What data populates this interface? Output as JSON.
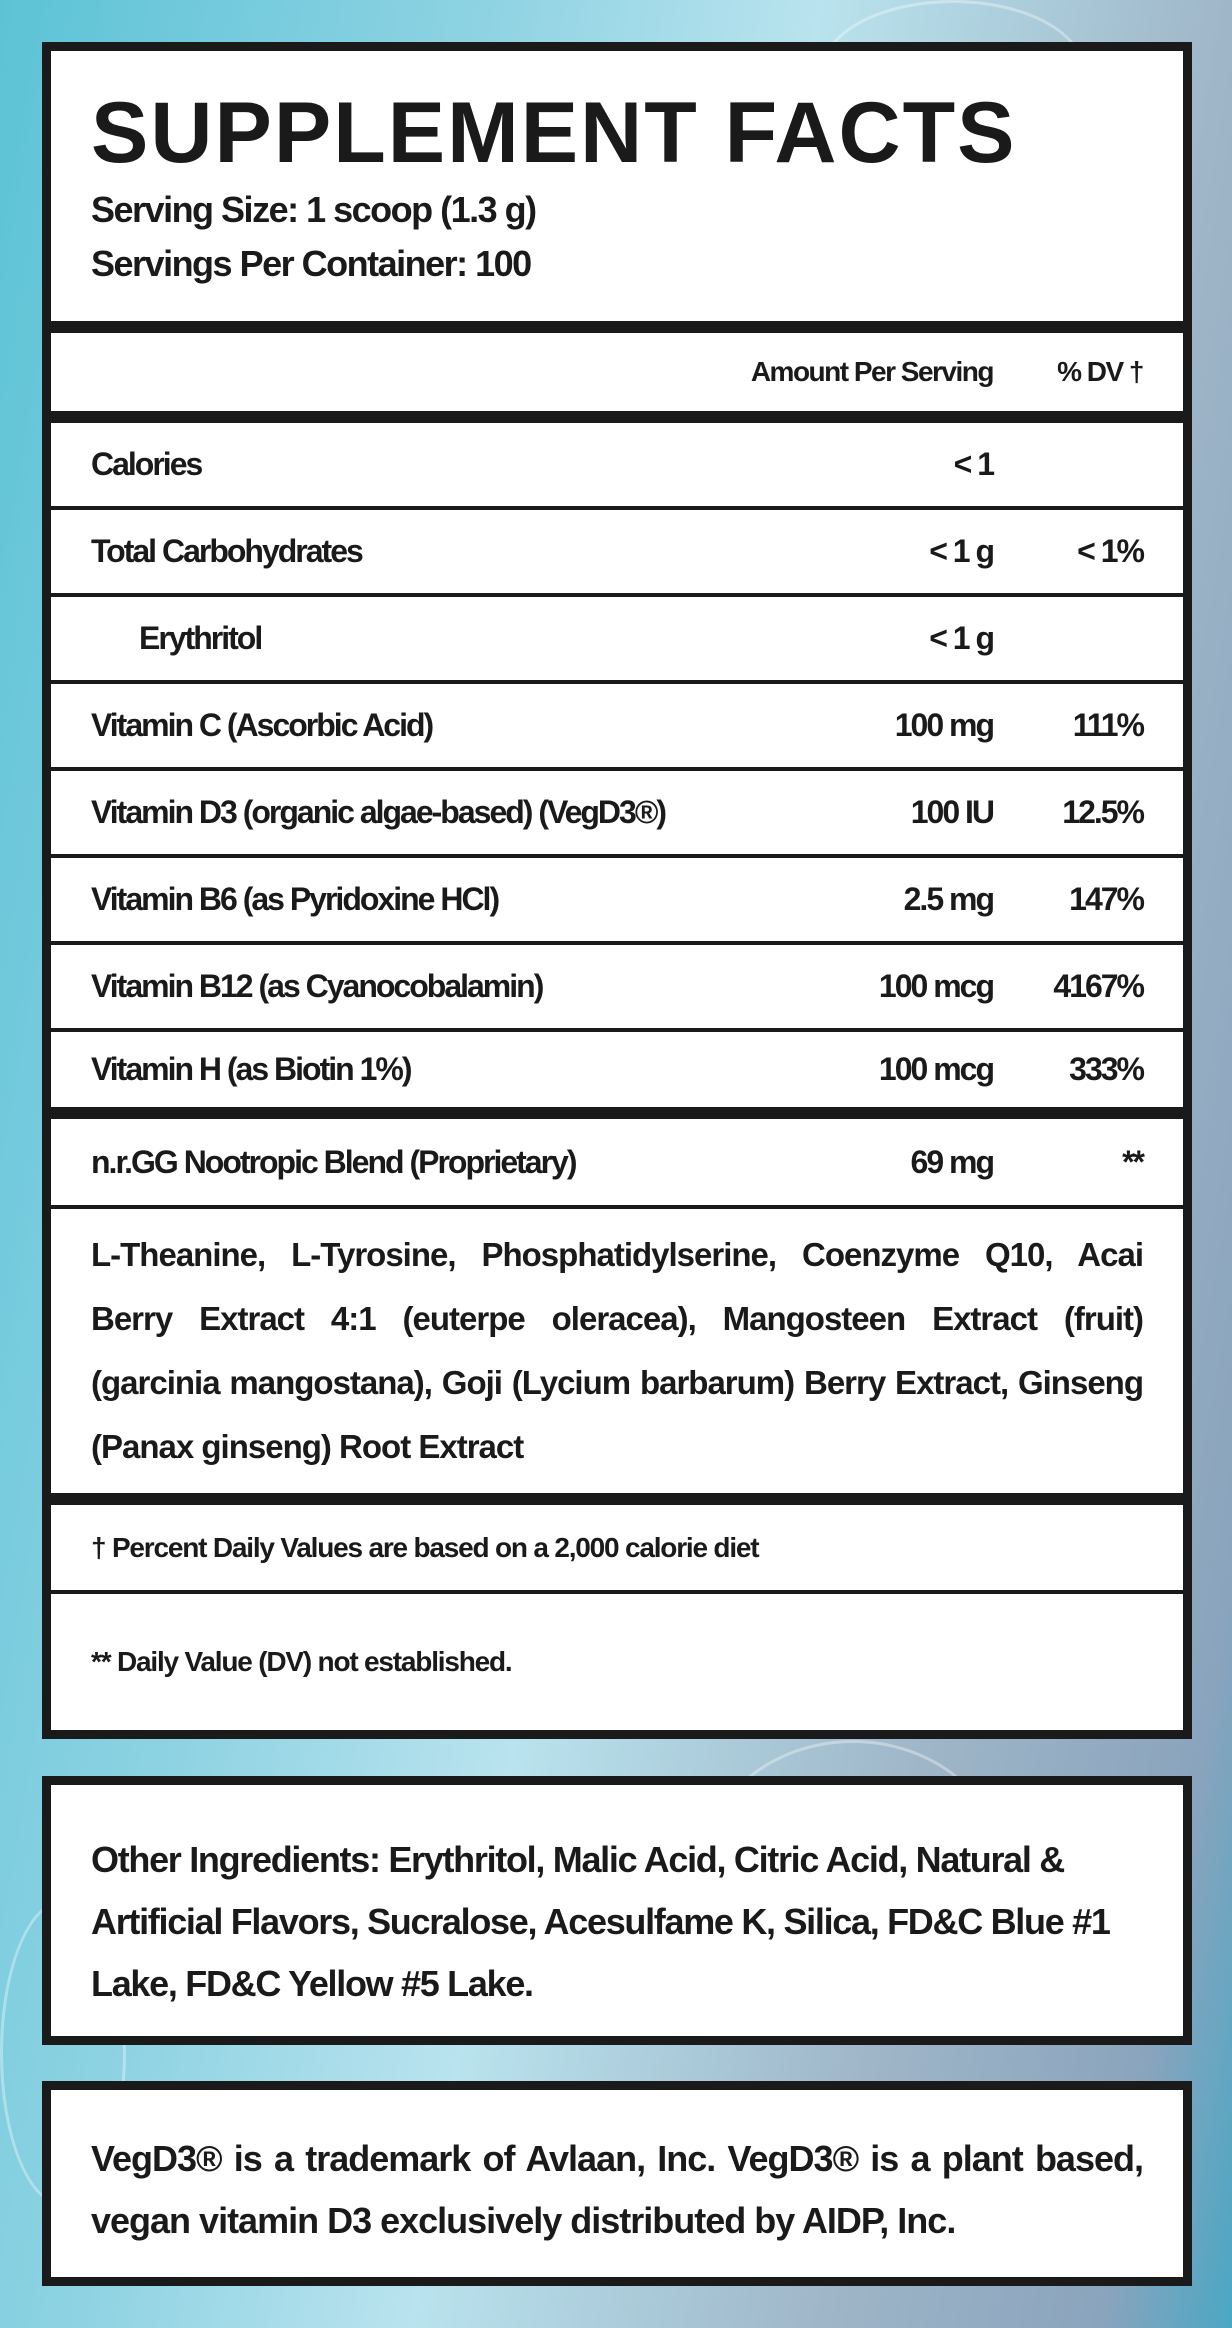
{
  "title": "SUPPLEMENT FACTS",
  "serving_size": "Serving Size: 1 scoop (1.3 g)",
  "servings_per_container": "Servings Per Container: 100",
  "columns": {
    "amount": "Amount Per Serving",
    "dv": "% DV †"
  },
  "rows": [
    {
      "name": "Calories",
      "amount": "< 1",
      "dv": ""
    },
    {
      "name": "Total Carbohydrates",
      "amount": "< 1 g",
      "dv": "< 1%"
    },
    {
      "name": "Erythritol",
      "amount": "< 1 g",
      "dv": ""
    },
    {
      "name": "Vitamin C (Ascorbic Acid)",
      "amount": "100 mg",
      "dv": "111%"
    },
    {
      "name": "Vitamin D3 (organic algae-based) (VegD3®)",
      "amount": "100 IU",
      "dv": "12.5%"
    },
    {
      "name": "Vitamin B6 (as Pyridoxine HCl)",
      "amount": "2.5 mg",
      "dv": "147%"
    },
    {
      "name": "Vitamin B12 (as Cyanocobalamin)",
      "amount": "100 mcg",
      "dv": "4167%"
    },
    {
      "name": "Vitamin H (as Biotin 1%)",
      "amount": "100 mcg",
      "dv": "333%"
    }
  ],
  "blend": {
    "name": "n.r.GG Nootropic Blend (Proprietary)",
    "amount": "69 mg",
    "dv": "**",
    "ingredients": "L-Theanine, L-Tyrosine, Phosphatidylserine, Coenzyme Q10, Acai Berry Extract 4:1 (euterpe oleracea), Mangosteen Extract (fruit) (garcinia mangostana), Goji (Lycium barbarum) Berry Extract, Ginseng (Panax ginseng) Root Extract"
  },
  "footnotes": [
    "† Percent Daily Values are based on a 2,000 calorie diet",
    "** Daily Value (DV) not established."
  ],
  "other_ingredients": "Other Ingredients: Erythritol, Malic Acid, Citric Acid, Natural & Artificial Flavors, Sucralose, Acesulfame K, Silica, FD&C Blue #1 Lake, FD&C Yellow #5 Lake.",
  "trademark_note": "VegD3® is a trademark of Avlaan, Inc. VegD3® is a plant based, vegan vitamin D3 exclusively distributed by AIDP, Inc.",
  "colors": {
    "border": "#1a1a1a",
    "background": "#8fd3e3"
  }
}
